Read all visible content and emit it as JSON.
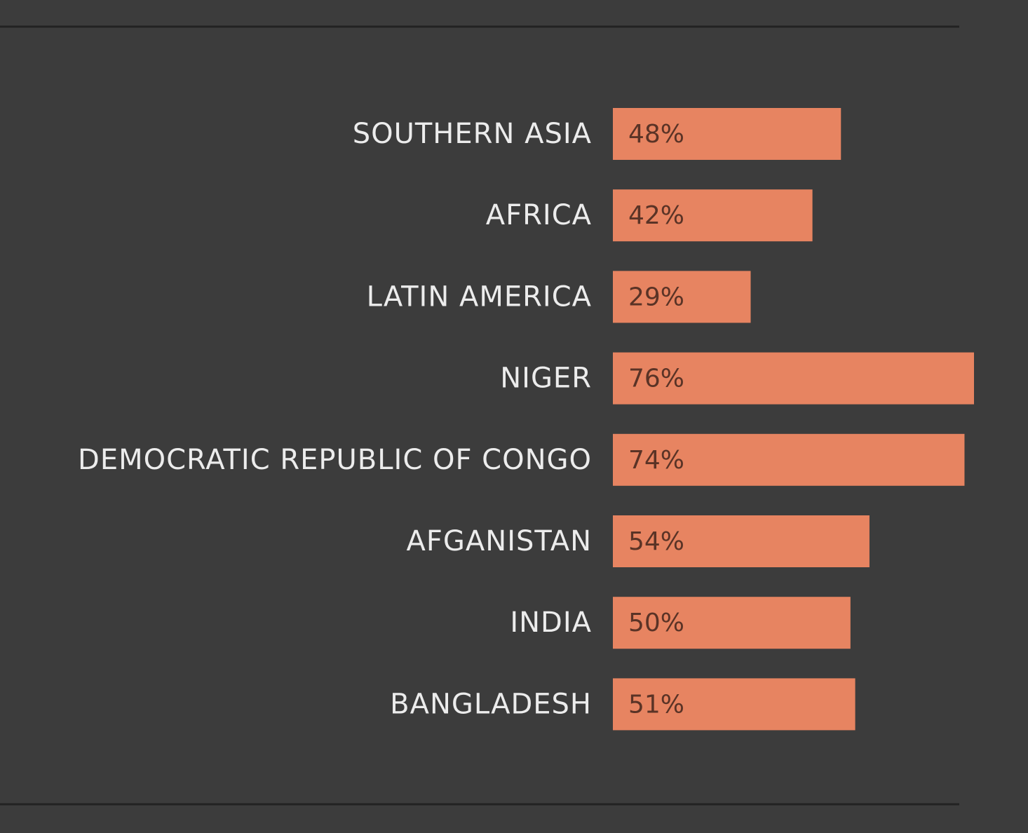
{
  "chart_data": {
    "type": "bar",
    "orientation": "horizontal",
    "categories": [
      "SOUTHERN ASIA",
      "AFRICA",
      "LATIN AMERICA",
      "NIGER",
      "DEMOCRATIC REPUBLIC OF CONGO",
      "AFGANISTAN",
      "INDIA",
      "BANGLADESH"
    ],
    "values": [
      48,
      42,
      29,
      76,
      74,
      54,
      50,
      51
    ],
    "value_labels": [
      "48%",
      "42%",
      "29%",
      "76%",
      "74%",
      "54%",
      "50%",
      "51%"
    ],
    "color": "#e78461"
  }
}
